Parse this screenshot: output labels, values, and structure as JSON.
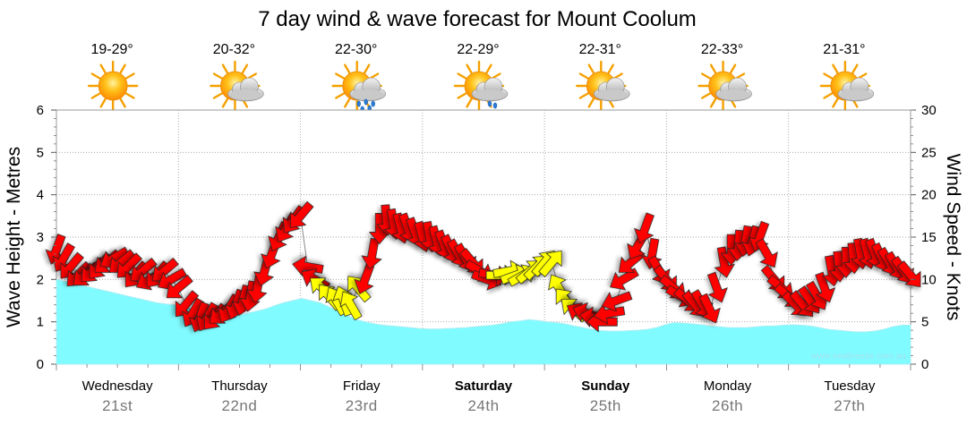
{
  "chart_data": {
    "type": "area",
    "title": "7 day wind & wave forecast for Mount Coolum",
    "y_left_label": "Wave Height - Metres",
    "y_right_label": "Wind Speed - Knots",
    "y_left_range": [
      0,
      6
    ],
    "y_left_ticks": [
      "0",
      "1",
      "2",
      "3",
      "4",
      "5",
      "6"
    ],
    "y_right_range": [
      0,
      30
    ],
    "y_right_ticks": [
      "0",
      "5",
      "10",
      "15",
      "20",
      "25",
      "30"
    ],
    "grid": true,
    "credit": "www.seabreeze.com.au",
    "days": [
      {
        "name": "Wednesday",
        "date": "21st",
        "temp": "19-29°",
        "weather": "sunny",
        "bold": false
      },
      {
        "name": "Thursday",
        "date": "22nd",
        "temp": "20-32°",
        "weather": "partly-cloudy",
        "bold": false
      },
      {
        "name": "Friday",
        "date": "23rd",
        "temp": "22-30°",
        "weather": "showers",
        "bold": false
      },
      {
        "name": "Saturday",
        "date": "24th",
        "temp": "22-29°",
        "weather": "light-shower",
        "bold": true
      },
      {
        "name": "Sunday",
        "date": "25th",
        "temp": "22-31°",
        "weather": "partly-cloudy",
        "bold": true
      },
      {
        "name": "Monday",
        "date": "26th",
        "temp": "22-33°",
        "weather": "partly-cloudy",
        "bold": false
      },
      {
        "name": "Tuesday",
        "date": "27th",
        "temp": "21-31°",
        "weather": "partly-cloudy",
        "bold": false
      }
    ],
    "wave_height_m": [
      2.0,
      1.95,
      1.9,
      1.85,
      1.8,
      1.75,
      1.7,
      1.65,
      1.6,
      1.55,
      1.5,
      1.45,
      1.42,
      1.4,
      1.38,
      1.3,
      1.25,
      1.2,
      1.15,
      1.12,
      1.15,
      1.2,
      1.25,
      1.3,
      1.38,
      1.45,
      1.5,
      1.55,
      1.5,
      1.45,
      1.35,
      1.25,
      1.15,
      1.05,
      1.0,
      0.95,
      0.92,
      0.9,
      0.88,
      0.86,
      0.84,
      0.83,
      0.83,
      0.84,
      0.85,
      0.86,
      0.88,
      0.9,
      0.92,
      0.95,
      1.0,
      1.02,
      1.05,
      1.03,
      1.0,
      0.98,
      0.95,
      0.9,
      0.86,
      0.82,
      0.79,
      0.78,
      0.78,
      0.79,
      0.8,
      0.82,
      0.86,
      0.93,
      0.98,
      0.97,
      0.95,
      0.93,
      0.9,
      0.88,
      0.86,
      0.86,
      0.86,
      0.88,
      0.9,
      0.9,
      0.92,
      0.93,
      0.92,
      0.9,
      0.86,
      0.82,
      0.8,
      0.78,
      0.76,
      0.76,
      0.78,
      0.82,
      0.88,
      0.92,
      0.92
    ],
    "wind_knots": [
      13.5,
      12.5,
      11.5,
      10.5,
      10.5,
      11,
      11.5,
      12,
      12.5,
      12,
      11.5,
      10.5,
      11,
      10,
      10.5,
      11,
      10,
      9,
      7,
      6,
      5.5,
      5.5,
      5.5,
      6,
      6.5,
      7,
      7.5,
      8,
      9,
      11,
      13,
      15,
      16,
      17,
      17.5,
      11.5,
      10,
      9,
      8,
      7.5,
      7.5,
      7,
      9,
      10,
      13,
      16,
      17,
      16.5,
      16,
      16,
      15.5,
      15,
      15,
      14.5,
      14,
      13.5,
      13,
      12.5,
      12,
      11,
      10,
      10.5,
      10.5,
      11,
      10.5,
      10.5,
      11,
      11.5,
      12,
      12,
      9,
      7.5,
      6.5,
      6,
      6,
      5.5,
      5,
      6,
      7.5,
      10,
      12,
      14,
      16,
      13,
      11,
      10,
      9,
      8,
      7.5,
      7,
      7,
      6.5,
      9,
      12,
      13.5,
      14,
      14.5,
      14.5,
      15,
      13,
      10,
      9,
      8,
      7,
      7,
      7.5,
      8,
      9,
      11,
      11.5,
      12,
      12.5,
      13,
      13,
      13,
      12.5,
      12,
      11.5,
      11,
      10.5
    ],
    "wind_dir_deg": [
      200,
      210,
      220,
      225,
      230,
      225,
      220,
      230,
      240,
      230,
      225,
      220,
      230,
      240,
      220,
      230,
      240,
      230,
      220,
      210,
      200,
      210,
      220,
      230,
      210,
      200,
      195,
      190,
      190,
      195,
      200,
      205,
      210,
      215,
      220,
      280,
      300,
      310,
      320,
      330,
      340,
      330,
      320,
      200,
      190,
      180,
      175,
      170,
      165,
      160,
      160,
      165,
      170,
      165,
      160,
      155,
      150,
      150,
      140,
      120,
      110,
      100,
      90,
      80,
      70,
      60,
      50,
      45,
      40,
      40,
      330,
      320,
      310,
      300,
      290,
      280,
      270,
      260,
      250,
      240,
      230,
      210,
      200,
      190,
      150,
      140,
      130,
      120,
      130,
      140,
      150,
      155,
      160,
      170,
      180,
      185,
      190,
      195,
      200,
      150,
      140,
      130,
      130,
      135,
      140,
      145,
      150,
      160,
      170,
      175,
      180,
      175,
      170,
      165,
      160,
      155,
      150,
      150,
      145,
      140
    ]
  }
}
